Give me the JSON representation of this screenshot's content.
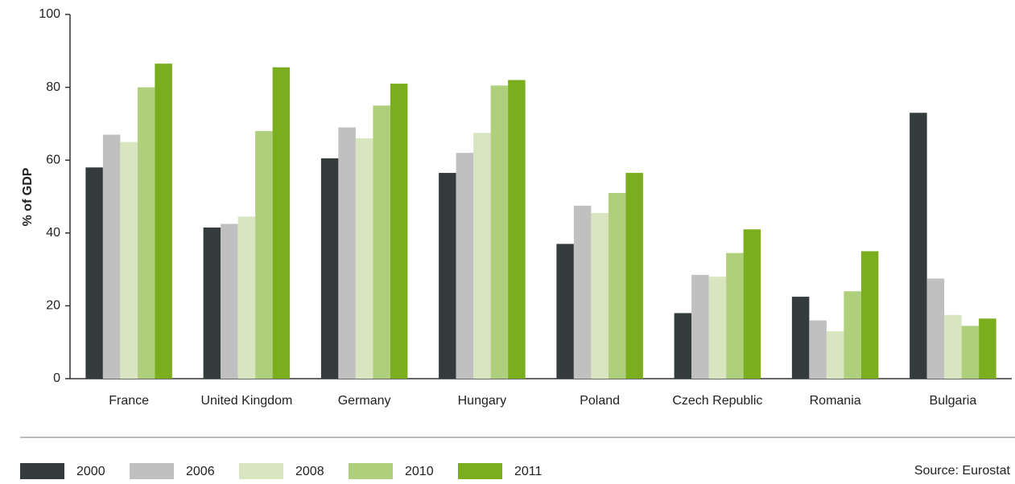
{
  "chart_data": {
    "type": "bar",
    "y_label": "% of GDP",
    "source": "Source: Eurostat",
    "categories": [
      "France",
      "United Kingdom",
      "Germany",
      "Hungary",
      "Poland",
      "Czech Republic",
      "Romania",
      "Bulgaria"
    ],
    "series": [
      {
        "name": "2000",
        "color": "#333b3c",
        "values": [
          58,
          41.5,
          60.5,
          56.5,
          37,
          18,
          22.5,
          73
        ]
      },
      {
        "name": "2006",
        "color": "#c0c0c0",
        "values": [
          67,
          42.5,
          69,
          62,
          47.5,
          28.5,
          16,
          27.5
        ]
      },
      {
        "name": "2008",
        "color": "#d9e5c0",
        "values": [
          65,
          44.5,
          66,
          67.5,
          45.5,
          28,
          13,
          17.5
        ]
      },
      {
        "name": "2010",
        "color": "#b0cf7d",
        "values": [
          80,
          68,
          75,
          80.5,
          51,
          34.5,
          24,
          14.5
        ]
      },
      {
        "name": "2011",
        "color": "#7bae1f",
        "values": [
          86.5,
          85.5,
          81,
          82,
          56.5,
          41,
          35,
          16.5
        ]
      }
    ],
    "ylim": [
      0,
      100
    ],
    "yticks": [
      0,
      20,
      40,
      60,
      80,
      100
    ],
    "grid": false
  }
}
